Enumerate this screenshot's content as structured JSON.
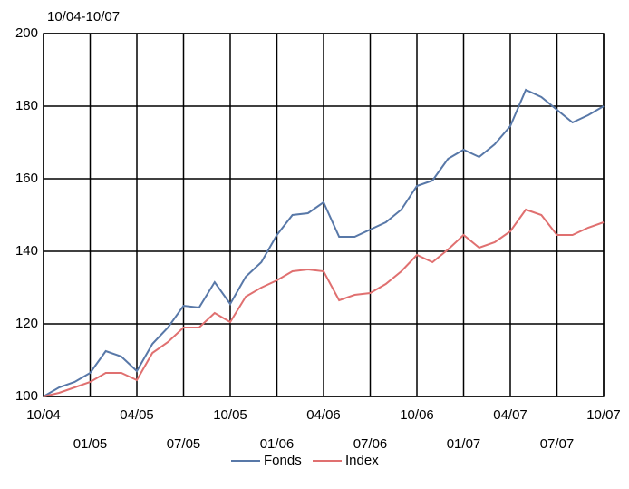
{
  "chart_data": {
    "type": "line",
    "title": "10/04-10/07",
    "categories": [
      "10/04",
      null,
      null,
      "01/05",
      null,
      null,
      "04/05",
      null,
      null,
      "07/05",
      null,
      null,
      "10/05",
      null,
      null,
      "01/06",
      null,
      null,
      "04/06",
      null,
      null,
      "07/06",
      null,
      null,
      "10/06",
      null,
      null,
      "01/07",
      null,
      null,
      "04/07",
      null,
      null,
      "07/07",
      null,
      null,
      "10/07"
    ],
    "series": [
      {
        "name": "Fonds",
        "color": "#5878a8",
        "values": [
          100,
          102.5,
          104,
          106.5,
          112.5,
          111,
          107,
          114.5,
          119,
          125,
          124.5,
          131.5,
          125.5,
          133,
          137,
          144.5,
          150,
          150.5,
          153.5,
          144,
          144,
          146,
          148,
          151.5,
          158,
          159.5,
          165.5,
          168,
          166,
          169.5,
          174.5,
          184.5,
          182.5,
          179,
          175.5,
          177.5,
          180
        ]
      },
      {
        "name": "Index",
        "color": "#e07070",
        "values": [
          100,
          101,
          102.5,
          104,
          106.5,
          106.5,
          104.5,
          112,
          115,
          119,
          119,
          123,
          120.5,
          127.5,
          130,
          132,
          134.5,
          135,
          134.5,
          126.5,
          128,
          128.5,
          131,
          134.5,
          139,
          137,
          140.5,
          144.5,
          141,
          142.5,
          145.5,
          151.5,
          150,
          144.5,
          144.5,
          146.5,
          148
        ]
      }
    ],
    "ylim": [
      100,
      200
    ],
    "yticks": [
      100,
      120,
      140,
      160,
      180,
      200
    ],
    "grid": true,
    "legend": "bottom"
  }
}
